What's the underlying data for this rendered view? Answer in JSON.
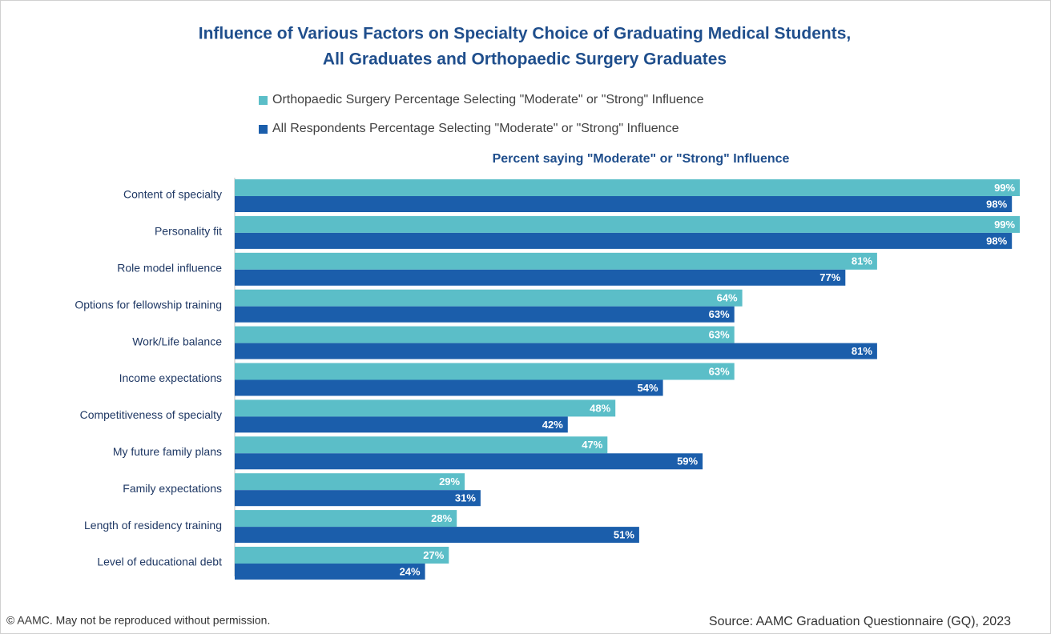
{
  "chart_data": {
    "type": "bar",
    "orientation": "horizontal",
    "title": "Influence of Various Factors on Specialty Choice of Graduating Medical Students,",
    "subtitle": "All Graduates and Orthopaedic Surgery Graduates",
    "x_axis_label": "Percent saying \"Moderate\" or \"Strong\" Influence",
    "categories": [
      "Content of specialty",
      "Personality fit",
      "Role model influence",
      "Options for fellowship training",
      "Work/Life balance",
      "Income expectations",
      "Competitiveness of specialty",
      "My future family plans",
      "Family expectations",
      "Length of residency training",
      "Level of educational debt"
    ],
    "series": [
      {
        "name": "Orthopaedic Surgery Percentage Selecting \"Moderate\" or \"Strong\" Influence",
        "color": "#5bbec8",
        "values": [
          99,
          99,
          81,
          64,
          63,
          63,
          48,
          47,
          29,
          28,
          27
        ],
        "value_labels": [
          "99%",
          "99%",
          "81%",
          "64%",
          "63%",
          "63%",
          "48%",
          "47%",
          "29%",
          "28%",
          "27%"
        ]
      },
      {
        "name": "All Respondents Percentage Selecting \"Moderate\" or \"Strong\" Influence",
        "color": "#1b5eab",
        "values": [
          98,
          98,
          77,
          63,
          81,
          54,
          42,
          59,
          31,
          51,
          24
        ],
        "value_labels": [
          "98%",
          "98%",
          "77%",
          "63%",
          "81%",
          "54%",
          "42%",
          "59%",
          "31%",
          "51%",
          "24%"
        ]
      }
    ],
    "xlim": [
      0,
      100
    ],
    "notes": [
      "© AAMC. May not be reproduced without permission.",
      "Source: AAMC Graduation Questionnaire (GQ), 2023"
    ]
  }
}
